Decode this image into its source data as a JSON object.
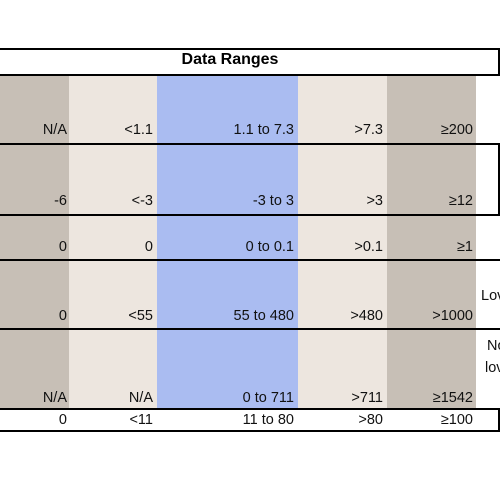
{
  "table": {
    "title": "Data Ranges",
    "column_colors": [
      "#c7bfb6",
      "#ede6df",
      "#aabcf1",
      "#ede6df",
      "#c7bfb6"
    ],
    "rows": [
      [
        "N/A",
        "<1.1",
        "1.1 to 7.3",
        ">7.3",
        "≥200"
      ],
      [
        "-6",
        "<-3",
        "-3 to 3",
        ">3",
        "≥12"
      ],
      [
        "0",
        "0",
        "0 to 0.1",
        ">0.1",
        "≥1"
      ],
      [
        "0",
        "<55",
        "55 to 480",
        ">480",
        ">1000"
      ],
      [
        "N/A",
        "N/A",
        "0 to 711",
        ">711",
        "≥1542"
      ],
      [
        "0",
        "<11",
        "11  to 80",
        ">80",
        "≥100"
      ]
    ],
    "side_notes": [
      "Lov",
      "No",
      "lov"
    ]
  }
}
